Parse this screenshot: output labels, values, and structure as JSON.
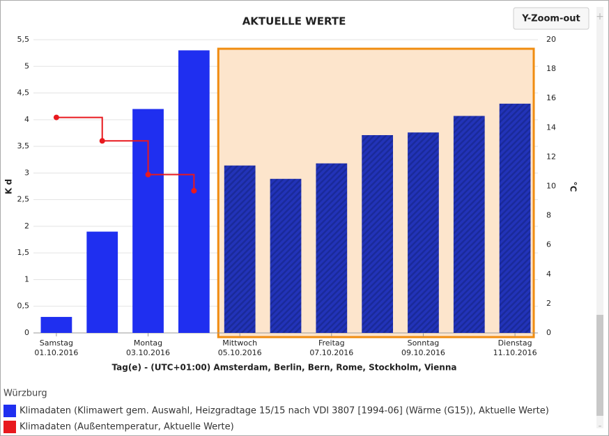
{
  "chart_data": {
    "type": "bar",
    "title": "AKTUELLE WERTE",
    "button": "Y-Zoom-out",
    "ylabel": "K d",
    "y2label": "°C",
    "xlabel": "Tag(e) - (UTC+01:00) Amsterdam, Berlin, Bern, Rome, Stockholm, Vienna",
    "legend_title": "Würzburg",
    "categories": [
      {
        "day": "Samstag",
        "date": "01.10.2016"
      },
      null,
      {
        "day": "Montag",
        "date": "03.10.2016"
      },
      null,
      {
        "day": "Mittwoch",
        "date": "05.10.2016"
      },
      null,
      {
        "day": "Freitag",
        "date": "07.10.2016"
      },
      null,
      {
        "day": "Sonntag",
        "date": "09.10.2016"
      },
      null,
      {
        "day": "Dienstag",
        "date": "11.10.2016"
      }
    ],
    "forecast_from": 4,
    "series": [
      {
        "name": "Klimadaten (Klimawert gem. Auswahl, Heizgradtage 15/15 nach VDI 3807 [1994-06] (Wärme (G15)), Aktuelle Werte)",
        "color": "#1f2ff0",
        "forecast_color": "#2233b8",
        "values": [
          0.3,
          1.9,
          4.2,
          5.3,
          3.14,
          2.89,
          3.18,
          3.71,
          3.76,
          4.07,
          4.3
        ]
      },
      {
        "name": "Klimadaten (Außentemperatur, Aktuelle Werte)",
        "color": "#e8191e",
        "axis": "y2",
        "step": true,
        "values": [
          14.7,
          13.1,
          10.8,
          9.7,
          null,
          null,
          null,
          null,
          null,
          null,
          null
        ]
      }
    ],
    "ylim": [
      0,
      5.5
    ],
    "yticks": [
      0,
      {
        "value": 0.5,
        "label": "0,5"
      },
      1,
      {
        "value": 1.5,
        "label": "1,5"
      },
      2,
      {
        "value": 2.5,
        "label": "2,5"
      },
      3,
      {
        "value": 3.5,
        "label": "3,5"
      },
      4,
      {
        "value": 4.5,
        "label": "4,5"
      },
      5,
      {
        "value": 5.5,
        "label": "5,5"
      }
    ],
    "y2lim": [
      0,
      20
    ],
    "y2ticks": [
      0,
      2,
      4,
      6,
      8,
      10,
      12,
      14,
      16,
      18,
      20
    ],
    "grid": true
  }
}
